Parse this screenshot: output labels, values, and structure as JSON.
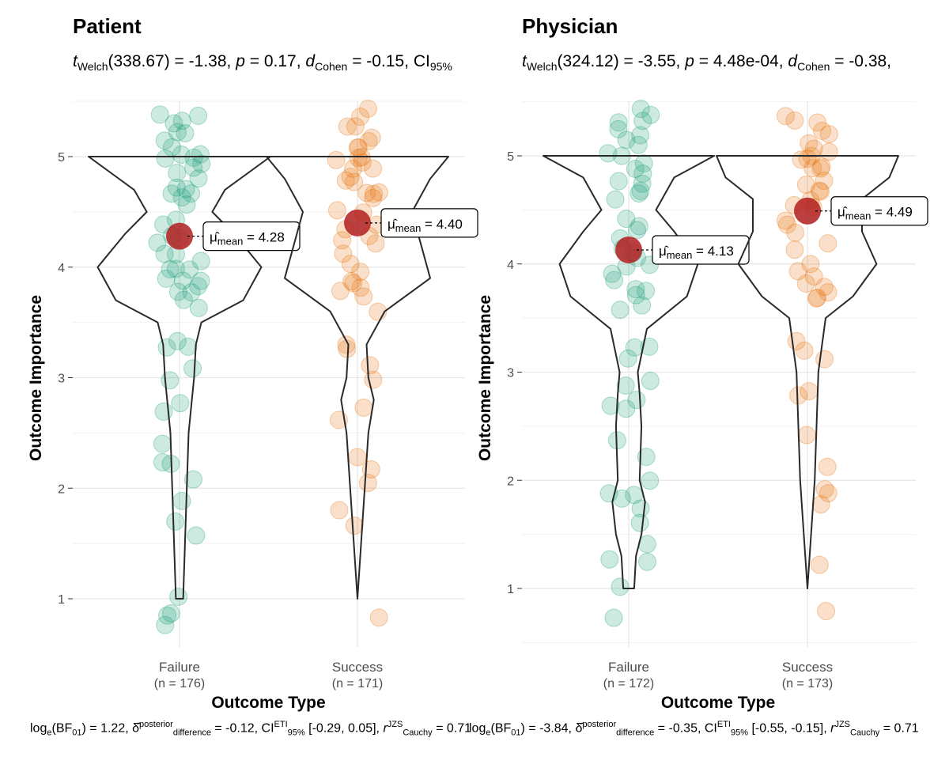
{
  "colors": {
    "failure": "#1b9e77",
    "success": "#e6730f",
    "mean_point": "#b21f1f",
    "grid_major": "#e6e6e6",
    "grid_minor": "#f2f2f2",
    "violin_stroke": "#2a2a2a",
    "axis_text": "#4d4d4d"
  },
  "panels": [
    {
      "title": "Patient",
      "subtitle": {
        "t_label": "t",
        "t_sub": "Welch",
        "df": "(338.67) = -1.38,",
        "p_label": "p",
        "p_value": "= 0.17,",
        "d_label": "d",
        "d_sub": "Cohen",
        "d_value": "= -0.15, CI",
        "ci_sub": "95%"
      },
      "caption": {
        "bf": "log",
        "bf_sub": "e",
        "bf_rest": "(BF",
        "bf_sub2": "01",
        "bf_value": ") = 1.22,",
        "delta_label": "δ̂",
        "delta_sup": "posterior",
        "delta_sub": "difference",
        "delta_value": "= -0.12, CI",
        "ci_sup": "ETI",
        "ci_sub": "95%",
        "ci_value": "[-0.29, 0.05],",
        "r_label": "r",
        "r_sup": "JZS",
        "r_sub": "Cauchy",
        "r_value": "= 0.71"
      }
    },
    {
      "title": "Physician",
      "subtitle": {
        "t_label": "t",
        "t_sub": "Welch",
        "df": "(324.12) = -3.55,",
        "p_label": "p",
        "p_value": "= 4.48e-04,",
        "d_label": "d",
        "d_sub": "Cohen",
        "d_value": "= -0.38,",
        "ci_sub": ""
      },
      "caption": {
        "bf": "log",
        "bf_sub": "e",
        "bf_rest": "(BF",
        "bf_sub2": "01",
        "bf_value": ") = -3.84,",
        "delta_label": "δ̂",
        "delta_sup": "posterior",
        "delta_sub": "difference",
        "delta_value": "= -0.35, CI",
        "ci_sup": "ETI",
        "ci_sub": "95%",
        "ci_value": "[-0.55, -0.15],",
        "r_label": "r",
        "r_sup": "JZS",
        "r_sub": "Cauchy",
        "r_value": "= 0.71"
      }
    }
  ],
  "chart_data": [
    {
      "type": "violin",
      "title": "Patient",
      "xlabel": "Outcome Type",
      "ylabel": "Outcome Importance",
      "ylim": [
        0.6,
        5.5
      ],
      "yticks": [
        1,
        2,
        3,
        4,
        5
      ],
      "categories": [
        {
          "name": "Failure",
          "n_label": "(n = 176)",
          "n": 176,
          "mean": 4.28,
          "mean_label": "= 4.28",
          "mu_label": "μ̂",
          "mu_sub": "mean",
          "points": [
            5.4,
            5.35,
            5.3,
            5.3,
            5.25,
            5.2,
            5.15,
            5.1,
            5.05,
            5.0,
            5.0,
            4.95,
            4.9,
            4.9,
            4.85,
            4.8,
            4.75,
            4.7,
            4.7,
            4.65,
            4.65,
            4.6,
            4.4,
            4.35,
            4.3,
            4.25,
            4.2,
            4.15,
            4.1,
            4.05,
            4.0,
            4.0,
            3.95,
            3.9,
            3.9,
            3.85,
            3.85,
            3.8,
            3.75,
            3.7,
            3.65,
            3.35,
            3.3,
            3.25,
            3.1,
            3.0,
            2.8,
            2.7,
            2.4,
            2.25,
            2.2,
            2.05,
            1.9,
            1.7,
            1.6,
            1.05,
            0.85,
            0.85,
            0.75
          ],
          "violin": [
            [
              1.0,
              0.02
            ],
            [
              1.5,
              0.03
            ],
            [
              2.0,
              0.04
            ],
            [
              2.5,
              0.05
            ],
            [
              3.0,
              0.08
            ],
            [
              3.3,
              0.09
            ],
            [
              3.5,
              0.12
            ],
            [
              3.7,
              0.35
            ],
            [
              4.0,
              0.45
            ],
            [
              4.3,
              0.3
            ],
            [
              4.5,
              0.18
            ],
            [
              4.7,
              0.25
            ],
            [
              5.0,
              0.5
            ]
          ]
        },
        {
          "name": "Success",
          "n_label": "(n = 171)",
          "n": 171,
          "mean": 4.4,
          "mean_label": "= 4.40",
          "mu_label": "μ̂",
          "mu_sub": "mean",
          "points": [
            5.4,
            5.35,
            5.3,
            5.25,
            5.2,
            5.15,
            5.1,
            5.05,
            5.0,
            5.0,
            5.0,
            4.95,
            4.9,
            4.9,
            4.85,
            4.8,
            4.75,
            4.7,
            4.7,
            4.65,
            4.6,
            4.55,
            4.5,
            4.4,
            4.35,
            4.3,
            4.25,
            4.2,
            4.1,
            4.0,
            3.95,
            3.9,
            3.85,
            3.8,
            3.75,
            3.7,
            3.6,
            3.3,
            3.25,
            3.1,
            2.95,
            2.7,
            2.65,
            2.25,
            2.15,
            2.05,
            1.8,
            1.65,
            0.8
          ],
          "violin": [
            [
              1.0,
              0.0
            ],
            [
              1.5,
              0.02
            ],
            [
              2.0,
              0.04
            ],
            [
              2.5,
              0.06
            ],
            [
              2.8,
              0.09
            ],
            [
              3.0,
              0.06
            ],
            [
              3.3,
              0.05
            ],
            [
              3.6,
              0.15
            ],
            [
              3.9,
              0.4
            ],
            [
              4.2,
              0.35
            ],
            [
              4.5,
              0.3
            ],
            [
              4.8,
              0.4
            ],
            [
              5.0,
              0.5
            ]
          ]
        }
      ]
    },
    {
      "type": "violin",
      "title": "Physician",
      "xlabel": "Outcome Type",
      "ylabel": "Outcome Importance",
      "ylim": [
        0.5,
        5.5
      ],
      "yticks": [
        1,
        2,
        3,
        4,
        5
      ],
      "categories": [
        {
          "name": "Failure",
          "n_label": "(n = 172)",
          "n": 172,
          "mean": 4.13,
          "mean_label": "= 4.13",
          "mu_label": "μ̂",
          "mu_sub": "mean",
          "points": [
            5.4,
            5.35,
            5.3,
            5.3,
            5.25,
            5.2,
            5.15,
            5.1,
            5.05,
            5.0,
            4.95,
            4.9,
            4.85,
            4.8,
            4.75,
            4.7,
            4.65,
            4.6,
            4.4,
            4.35,
            4.3,
            4.2,
            4.15,
            4.1,
            4.05,
            4.0,
            3.95,
            3.9,
            3.85,
            3.8,
            3.75,
            3.7,
            3.65,
            3.6,
            3.25,
            3.2,
            3.1,
            2.9,
            2.85,
            2.75,
            2.7,
            2.65,
            2.4,
            2.2,
            2.0,
            1.9,
            1.85,
            1.8,
            1.75,
            1.6,
            1.4,
            1.3,
            1.25,
            1.0,
            0.7
          ],
          "violin": [
            [
              1.0,
              0.03
            ],
            [
              1.3,
              0.04
            ],
            [
              1.5,
              0.07
            ],
            [
              1.8,
              0.09
            ],
            [
              2.0,
              0.06
            ],
            [
              2.5,
              0.07
            ],
            [
              2.8,
              0.06
            ],
            [
              3.0,
              0.05
            ],
            [
              3.4,
              0.1
            ],
            [
              3.7,
              0.32
            ],
            [
              4.0,
              0.38
            ],
            [
              4.3,
              0.25
            ],
            [
              4.5,
              0.15
            ],
            [
              4.8,
              0.25
            ],
            [
              5.0,
              0.47
            ]
          ]
        },
        {
          "name": "Success",
          "n_label": "(n = 173)",
          "n": 173,
          "mean": 4.49,
          "mean_label": "= 4.49",
          "mu_label": "μ̂",
          "mu_sub": "mean",
          "points": [
            5.4,
            5.35,
            5.3,
            5.25,
            5.2,
            5.15,
            5.1,
            5.05,
            5.0,
            5.0,
            4.95,
            4.9,
            4.9,
            4.85,
            4.8,
            4.75,
            4.7,
            4.65,
            4.6,
            4.55,
            4.5,
            4.4,
            4.35,
            4.3,
            4.2,
            4.1,
            4.0,
            3.95,
            3.9,
            3.85,
            3.8,
            3.75,
            3.7,
            3.65,
            3.25,
            3.2,
            3.1,
            2.8,
            2.75,
            2.4,
            2.15,
            1.95,
            1.9,
            1.8,
            1.25,
            0.8
          ],
          "violin": [
            [
              1.0,
              0.0
            ],
            [
              1.5,
              0.02
            ],
            [
              2.0,
              0.04
            ],
            [
              2.5,
              0.05
            ],
            [
              3.0,
              0.06
            ],
            [
              3.5,
              0.1
            ],
            [
              3.7,
              0.25
            ],
            [
              4.0,
              0.38
            ],
            [
              4.3,
              0.3
            ],
            [
              4.6,
              0.3
            ],
            [
              4.8,
              0.45
            ],
            [
              5.0,
              0.5
            ]
          ]
        }
      ]
    }
  ]
}
